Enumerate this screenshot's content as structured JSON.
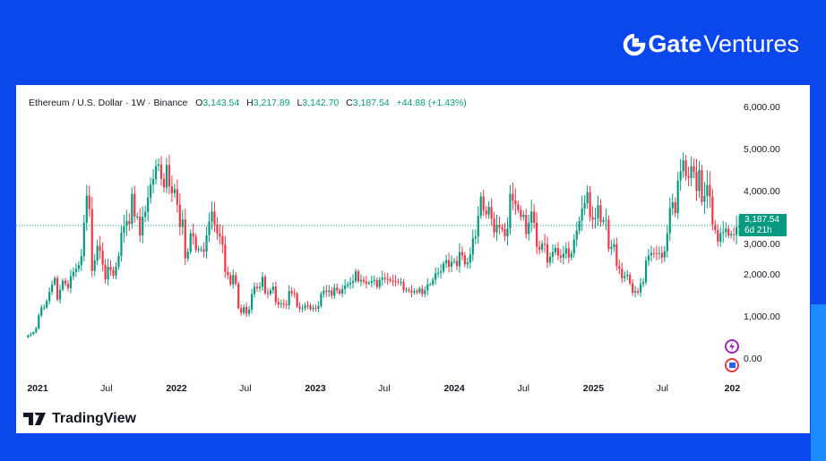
{
  "brand": {
    "name_bold": "Gate",
    "name_rest": " Ventures"
  },
  "legend": {
    "symbol": "Ethereum / U.S. Dollar · 1W · Binance",
    "o_label": "O",
    "o": "3,143.54",
    "h_label": "H",
    "h": "3,217.89",
    "l_label": "L",
    "l": "3,142.70",
    "c_label": "C",
    "c": "3,187.54",
    "change": "+44.88 (+1.43%)"
  },
  "price_label": {
    "price": "3,187.54",
    "countdown": "6d 21h"
  },
  "footer": {
    "logo_text": "TradingView"
  },
  "colors": {
    "up": "#089981",
    "down": "#f23645",
    "background": "#0a48ee"
  },
  "chart_data": {
    "type": "candlestick",
    "interval": "1W",
    "start": "2020-12-07",
    "ylim": [
      0,
      6000
    ],
    "y_ticks": [
      "6,000.00",
      "5,000.00",
      "4,000.00",
      "3,000.00",
      "2,000.00",
      "1,000.00",
      "0.00"
    ],
    "x_ticks": [
      "2021",
      "Jul",
      "2022",
      "Jul",
      "2023",
      "Jul",
      "2024",
      "Jul",
      "2025",
      "Jul",
      "202"
    ],
    "last_price": 3187.54,
    "closes": [
      570,
      590,
      640,
      730,
      1040,
      1230,
      1230,
      1380,
      1600,
      1780,
      1930,
      1420,
      1650,
      1870,
      1790,
      1690,
      1970,
      2080,
      2150,
      2240,
      2450,
      3250,
      3900,
      3580,
      2100,
      2350,
      2700,
      2580,
      2250,
      1900,
      2200,
      2120,
      1990,
      2200,
      2460,
      3010,
      3170,
      3290,
      3220,
      3940,
      3400,
      3400,
      2950,
      3390,
      3510,
      3850,
      4160,
      4290,
      4610,
      4640,
      4300,
      4090,
      4630,
      4120,
      3960,
      4050,
      3680,
      3150,
      3330,
      2400,
      2560,
      3000,
      2920,
      2600,
      2620,
      2620,
      2560,
      2950,
      3280,
      3520,
      3210,
      2990,
      2930,
      2730,
      2080,
      2000,
      1780,
      2000,
      1800,
      1210,
      1100,
      1240,
      1080,
      1180,
      1550,
      1720,
      1690,
      1720,
      1960,
      1570,
      1550,
      1640,
      1730,
      1360,
      1300,
      1320,
      1300,
      1280,
      1620,
      1570,
      1560,
      1250,
      1200,
      1210,
      1280,
      1275,
      1190,
      1220,
      1200,
      1265,
      1550,
      1630,
      1600,
      1630,
      1510,
      1700,
      1640,
      1560,
      1670,
      1750,
      1780,
      1820,
      1860,
      2090,
      1850,
      1890,
      1850,
      1800,
      1820,
      1860,
      1880,
      1720,
      1890,
      1940,
      1910,
      1900,
      1870,
      1860,
      1850,
      1830,
      1840,
      1640,
      1650,
      1630,
      1590,
      1620,
      1590,
      1680,
      1550,
      1640,
      1780,
      1780,
      1890,
      2050,
      2060,
      2090,
      2280,
      2360,
      2200,
      2320,
      2340,
      2220,
      2550,
      2470,
      2260,
      2300,
      2490,
      2880,
      2920,
      3420,
      3880,
      3540,
      3450,
      3630,
      3350,
      3020,
      3200,
      3140,
      3100,
      2930,
      3110,
      3940,
      3780,
      3690,
      3560,
      3390,
      3440,
      2980,
      3250,
      3520,
      3250,
      2680,
      2610,
      2750,
      2740,
      2300,
      2440,
      2550,
      2650,
      2470,
      2420,
      2510,
      2640,
      2420,
      2520,
      2850,
      3060,
      3300,
      3590,
      3720,
      3980,
      3390,
      3330,
      3360,
      3670,
      3270,
      3310,
      3320,
      2630,
      2670,
      2740,
      2220,
      2150,
      1930,
      1980,
      2010,
      1800,
      1580,
      1620,
      1590,
      1790,
      1830,
      2350,
      2470,
      2530,
      2520,
      2510,
      2530,
      2420,
      2570,
      3000,
      3600,
      3740,
      3480,
      4260,
      4480,
      4740,
      4360,
      4320,
      4600,
      4470,
      4010,
      4510,
      3750,
      3890,
      4150,
      3880,
      3200,
      3080,
      2800,
      3000,
      3030,
      3110,
      2950,
      2980,
      2960,
      3143.54,
      3187.54
    ]
  }
}
